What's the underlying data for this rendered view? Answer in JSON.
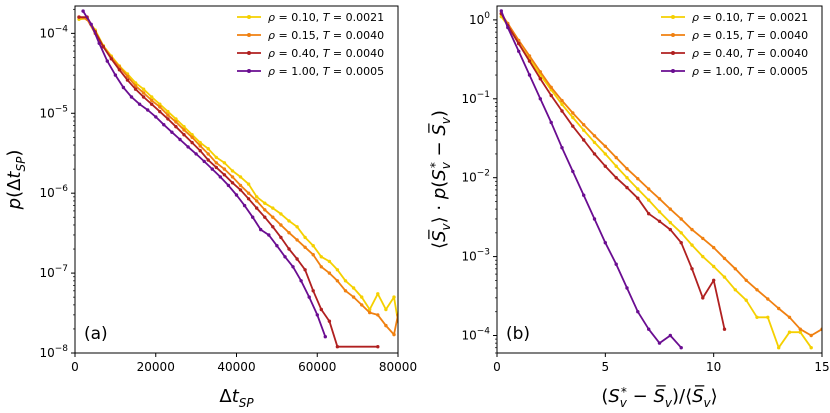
{
  "chart_data": [
    {
      "type": "line",
      "panel_label": "(a)",
      "xlabel": "Δt_SP",
      "ylabel": "p(Δt_SP)",
      "xscale": "linear",
      "yscale": "log",
      "xlim": [
        0,
        80000
      ],
      "ylim": [
        1e-08,
        0.00022
      ],
      "xticks": [
        0,
        20000,
        40000,
        60000,
        80000
      ],
      "xtick_labels": [
        "0",
        "20000",
        "40000",
        "60000",
        "80000"
      ],
      "yticks": [
        1e-08,
        1e-07,
        1e-06,
        1e-05,
        0.0001
      ],
      "ytick_labels": [
        "10^-8",
        "10^-7",
        "10^-6",
        "10^-5",
        "10^-4"
      ],
      "legend_position": "upper-right",
      "series": [
        {
          "name": "ρ = 0.10, T = 0.0021",
          "color": "#f5d000",
          "x": [
            1000,
            3000,
            5000,
            7000,
            9000,
            11000,
            13000,
            15000,
            17000,
            19000,
            21000,
            23000,
            25000,
            27000,
            29000,
            31000,
            33000,
            35000,
            37000,
            39000,
            41000,
            43000,
            45000,
            47000,
            49000,
            51000,
            53000,
            55000,
            57000,
            59000,
            61000,
            63000,
            65000,
            67000,
            69000,
            71000,
            73000,
            75000,
            77000,
            79000,
            80000
          ],
          "y": [
            0.00015,
            0.000155,
            0.00011,
            7e-05,
            5.2e-05,
            3.9e-05,
            3.1e-05,
            2.4e-05,
            2e-05,
            1.6e-05,
            1.3e-05,
            1.05e-05,
            8.5e-06,
            6.8e-06,
            5.4e-06,
            4.3e-06,
            3.6e-06,
            2.8e-06,
            2.4e-06,
            1.9e-06,
            1.6e-06,
            1.3e-06,
            9e-07,
            7.5e-07,
            6.5e-07,
            5.5e-07,
            4.5e-07,
            3.8e-07,
            2.8e-07,
            2.2e-07,
            1.6e-07,
            1.4e-07,
            1.1e-07,
            8e-08,
            6.5e-08,
            5e-08,
            3.5e-08,
            5.5e-08,
            3.5e-08,
            5e-08,
            2.5e-08
          ]
        },
        {
          "name": "ρ = 0.15, T = 0.0040",
          "color": "#f08010",
          "x": [
            1000,
            3000,
            5000,
            7000,
            9000,
            11000,
            13000,
            15000,
            17000,
            19000,
            21000,
            23000,
            25000,
            27000,
            29000,
            31000,
            33000,
            35000,
            37000,
            39000,
            41000,
            43000,
            45000,
            47000,
            49000,
            51000,
            53000,
            55000,
            57000,
            59000,
            61000,
            63000,
            65000,
            67000,
            69000,
            71000,
            73000,
            75000,
            77000,
            79000,
            80000
          ],
          "y": [
            0.00016,
            0.00015,
            0.0001,
            6.8e-05,
            5e-05,
            3.8e-05,
            2.9e-05,
            2.2e-05,
            1.8e-05,
            1.45e-05,
            1.2e-05,
            9.5e-06,
            7.8e-06,
            6.2e-06,
            5e-06,
            3.9e-06,
            3.1e-06,
            2.4e-06,
            2e-06,
            1.6e-06,
            1.25e-06,
            1e-06,
            8e-07,
            6.2e-07,
            5e-07,
            4e-07,
            3.2e-07,
            2.6e-07,
            2.1e-07,
            1.7e-07,
            1.2e-07,
            1e-07,
            8e-08,
            6e-08,
            5e-08,
            4e-08,
            3.2e-08,
            3e-08,
            2.2e-08,
            1.7e-08,
            3e-08
          ]
        },
        {
          "name": "ρ = 0.40, T = 0.0040",
          "color": "#b02020",
          "x": [
            1000,
            3000,
            5000,
            7000,
            9000,
            11000,
            13000,
            15000,
            17000,
            19000,
            21000,
            23000,
            25000,
            27000,
            29000,
            31000,
            33000,
            35000,
            37000,
            39000,
            41000,
            43000,
            45000,
            47000,
            49000,
            51000,
            53000,
            55000,
            57000,
            59000,
            61000,
            63000,
            65000,
            75000
          ],
          "y": [
            0.00016,
            0.00016,
            0.000105,
            6.8e-05,
            4.8e-05,
            3.5e-05,
            2.6e-05,
            2e-05,
            1.6e-05,
            1.3e-05,
            1.05e-05,
            8.5e-06,
            6.8e-06,
            5.4e-06,
            4.3e-06,
            3.4e-06,
            2.6e-06,
            2.1e-06,
            1.7e-06,
            1.35e-06,
            1.1e-06,
            8.5e-07,
            6.5e-07,
            5e-07,
            3.8e-07,
            2.8e-07,
            2e-07,
            1.5e-07,
            1.1e-07,
            6e-08,
            3.5e-08,
            2.5e-08,
            1.2e-08,
            1.2e-08
          ]
        },
        {
          "name": "ρ = 1.00, T = 0.0005",
          "color": "#6a0d91",
          "x": [
            2000,
            4000,
            6000,
            8000,
            10000,
            12000,
            14000,
            16000,
            18000,
            20000,
            22000,
            24000,
            26000,
            28000,
            30000,
            32000,
            34000,
            36000,
            38000,
            40000,
            42000,
            44000,
            46000,
            48000,
            50000,
            52000,
            54000,
            56000,
            58000,
            60000,
            62000
          ],
          "y": [
            0.00019,
            0.00013,
            7.5e-05,
            4.5e-05,
            3e-05,
            2.1e-05,
            1.6e-05,
            1.3e-05,
            1.1e-05,
            9e-06,
            7.2e-06,
            5.8e-06,
            4.7e-06,
            3.8e-06,
            3.1e-06,
            2.5e-06,
            2e-06,
            1.6e-06,
            1.25e-06,
            9.5e-07,
            7e-07,
            5e-07,
            3.5e-07,
            3e-07,
            2.2e-07,
            1.6e-07,
            1.2e-07,
            8e-08,
            5e-08,
            3e-08,
            1.6e-08
          ]
        }
      ]
    },
    {
      "type": "line",
      "panel_label": "(b)",
      "xlabel": "(S*_v − S̄_v)/⟨S̄_v⟩",
      "ylabel": "⟨S̄_v⟩ · p(S*_v − S̄_v)",
      "xscale": "linear",
      "yscale": "log",
      "xlim": [
        0,
        15
      ],
      "ylim": [
        6e-05,
        1.5
      ],
      "xticks": [
        0,
        5,
        10,
        15
      ],
      "xtick_labels": [
        "0",
        "5",
        "10",
        "15"
      ],
      "yticks": [
        0.0001,
        0.001,
        0.01,
        0.1,
        1
      ],
      "ytick_labels": [
        "10^-4",
        "10^-3",
        "10^-2",
        "10^-1",
        "10^0"
      ],
      "legend_position": "upper-right",
      "series": [
        {
          "name": "ρ = 0.10, T = 0.0021",
          "color": "#f5d000",
          "x": [
            0.2,
            0.5,
            1,
            1.5,
            2,
            2.5,
            3,
            3.5,
            4,
            4.5,
            5,
            5.5,
            6,
            6.5,
            7,
            7.5,
            8,
            8.5,
            9,
            9.5,
            10,
            10.5,
            11,
            11.5,
            12,
            12.5,
            13,
            13.5,
            14,
            14.5
          ],
          "y": [
            1.1,
            0.85,
            0.5,
            0.32,
            0.2,
            0.13,
            0.085,
            0.058,
            0.04,
            0.028,
            0.02,
            0.014,
            0.01,
            0.0072,
            0.0052,
            0.0037,
            0.0027,
            0.002,
            0.0014,
            0.001,
            0.00075,
            0.00055,
            0.00038,
            0.00028,
            0.00017,
            0.00017,
            7e-05,
            0.00011,
            0.00011,
            7e-05
          ]
        },
        {
          "name": "ρ = 0.15, T = 0.0040",
          "color": "#f08010",
          "x": [
            0.2,
            0.5,
            1,
            1.5,
            2,
            2.5,
            3,
            3.5,
            4,
            4.5,
            5,
            5.5,
            6,
            6.5,
            7,
            7.5,
            8,
            8.5,
            9,
            9.5,
            10,
            10.5,
            11,
            11.5,
            12,
            12.5,
            13,
            13.5,
            14,
            14.5,
            15
          ],
          "y": [
            1.2,
            0.9,
            0.55,
            0.35,
            0.22,
            0.14,
            0.095,
            0.066,
            0.047,
            0.034,
            0.025,
            0.018,
            0.013,
            0.0097,
            0.0072,
            0.0054,
            0.004,
            0.003,
            0.0022,
            0.0017,
            0.0013,
            0.00095,
            0.0007,
            0.0005,
            0.00038,
            0.00029,
            0.00022,
            0.00017,
            0.00012,
            0.0001,
            0.00012
          ]
        },
        {
          "name": "ρ = 0.40, T = 0.0040",
          "color": "#b02020",
          "x": [
            0.2,
            0.5,
            1,
            1.5,
            2,
            2.5,
            3,
            3.5,
            4,
            4.5,
            5,
            5.5,
            6,
            6.5,
            7,
            7.5,
            8,
            8.5,
            9,
            9.5,
            10,
            10.5
          ],
          "y": [
            1.2,
            0.85,
            0.5,
            0.3,
            0.18,
            0.11,
            0.07,
            0.045,
            0.03,
            0.02,
            0.014,
            0.01,
            0.0075,
            0.0055,
            0.0035,
            0.0028,
            0.0022,
            0.0015,
            0.0007,
            0.0003,
            0.0005,
            0.00012
          ]
        },
        {
          "name": "ρ = 1.00, T = 0.0005",
          "color": "#6a0d91",
          "x": [
            0.2,
            0.5,
            1,
            1.5,
            2,
            2.5,
            3,
            3.5,
            4,
            4.5,
            5,
            5.5,
            6,
            6.5,
            7,
            7.5,
            8,
            8.5
          ],
          "y": [
            1.3,
            0.8,
            0.4,
            0.2,
            0.1,
            0.05,
            0.024,
            0.012,
            0.006,
            0.003,
            0.0015,
            0.0008,
            0.0004,
            0.0002,
            0.00012,
            8e-05,
            0.0001,
            7e-05
          ]
        }
      ]
    }
  ]
}
